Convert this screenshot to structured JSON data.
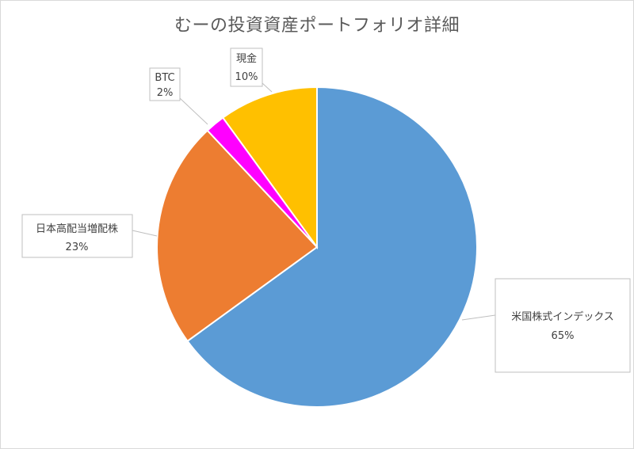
{
  "chart_data": {
    "type": "pie",
    "title": "むーの投資資産ポートフォリオ詳細",
    "slices": [
      {
        "name": "米国株式インデックス",
        "value": 65,
        "label": "65%",
        "color": "#5b9bd5"
      },
      {
        "name": "日本高配当増配株",
        "value": 23,
        "label": "23%",
        "color": "#ed7d31"
      },
      {
        "name": "BTC",
        "value": 2,
        "label": "2%",
        "color": "#ff00ff"
      },
      {
        "name": "現金",
        "value": 10,
        "label": "10%",
        "color": "#ffc000"
      }
    ],
    "start_angle_deg": 0,
    "direction": "clockwise",
    "legend": "none",
    "data_labels": "callouts"
  }
}
